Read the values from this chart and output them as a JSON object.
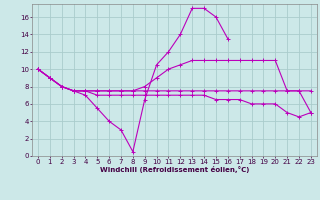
{
  "xlabel": "Windchill (Refroidissement éolien,°C)",
  "background_color": "#cce8e8",
  "grid_color": "#aacccc",
  "line_color": "#bb00bb",
  "xlim": [
    -0.5,
    23.5
  ],
  "ylim": [
    0,
    17.5
  ],
  "xticks": [
    0,
    1,
    2,
    3,
    4,
    5,
    6,
    7,
    8,
    9,
    10,
    11,
    12,
    13,
    14,
    15,
    16,
    17,
    18,
    19,
    20,
    21,
    22,
    23
  ],
  "yticks": [
    0,
    2,
    4,
    6,
    8,
    10,
    12,
    14,
    16
  ],
  "series": [
    [
      10.0,
      9.0,
      8.0,
      7.5,
      7.0,
      5.5,
      4.0,
      3.0,
      0.5,
      6.5,
      10.5,
      12.0,
      14.0,
      17.0,
      17.0,
      16.0,
      13.5,
      null,
      null,
      null,
      null,
      null,
      null,
      null
    ],
    [
      10.0,
      9.0,
      8.0,
      7.5,
      7.5,
      7.5,
      7.5,
      7.5,
      7.5,
      8.0,
      9.0,
      10.0,
      10.5,
      11.0,
      11.0,
      11.0,
      11.0,
      11.0,
      11.0,
      11.0,
      11.0,
      7.5,
      7.5,
      5.0
    ],
    [
      10.0,
      9.0,
      8.0,
      7.5,
      7.5,
      7.0,
      7.0,
      7.0,
      7.0,
      7.0,
      7.0,
      7.0,
      7.0,
      7.0,
      7.0,
      6.5,
      6.5,
      6.5,
      6.0,
      6.0,
      6.0,
      5.0,
      4.5,
      5.0
    ],
    [
      10.0,
      9.0,
      8.0,
      7.5,
      7.5,
      7.5,
      7.5,
      7.5,
      7.5,
      7.5,
      7.5,
      7.5,
      7.5,
      7.5,
      7.5,
      7.5,
      7.5,
      7.5,
      7.5,
      7.5,
      7.5,
      7.5,
      7.5,
      7.5
    ]
  ]
}
